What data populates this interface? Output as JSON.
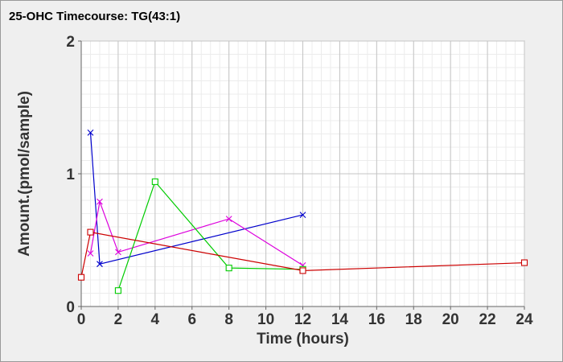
{
  "chart_data": {
    "type": "line",
    "title": "25-OHC Timecourse: TG(43:1)",
    "xlabel": "Time (hours)",
    "ylabel": "Amount.(pmol/sample)",
    "xlim": [
      0,
      24
    ],
    "ylim": [
      0,
      2
    ],
    "xticks": [
      "0",
      "2",
      "4",
      "6",
      "8",
      "10",
      "12",
      "14",
      "16",
      "18",
      "20",
      "22",
      "24"
    ],
    "yticks": [
      "0",
      "1",
      "2"
    ],
    "grid": true,
    "legend": "none",
    "series": [
      {
        "color": "#0000cc",
        "marker": "x",
        "points": [
          [
            0.5,
            1.31
          ],
          [
            1,
            0.32
          ],
          [
            12,
            0.69
          ]
        ]
      },
      {
        "color": "#dd00dd",
        "marker": "x",
        "points": [
          [
            0.5,
            0.4
          ],
          [
            1,
            0.79
          ],
          [
            2,
            0.41
          ],
          [
            8,
            0.66
          ],
          [
            12,
            0.31
          ]
        ]
      },
      {
        "color": "#00cc00",
        "marker": "square",
        "points": [
          [
            2,
            0.12
          ],
          [
            4,
            0.94
          ],
          [
            8,
            0.29
          ],
          [
            12,
            0.28
          ]
        ]
      },
      {
        "color": "#cc0000",
        "marker": "square",
        "points": [
          [
            0,
            0.22
          ],
          [
            0.5,
            0.56
          ],
          [
            12,
            0.27
          ],
          [
            24,
            0.33
          ]
        ]
      }
    ]
  }
}
